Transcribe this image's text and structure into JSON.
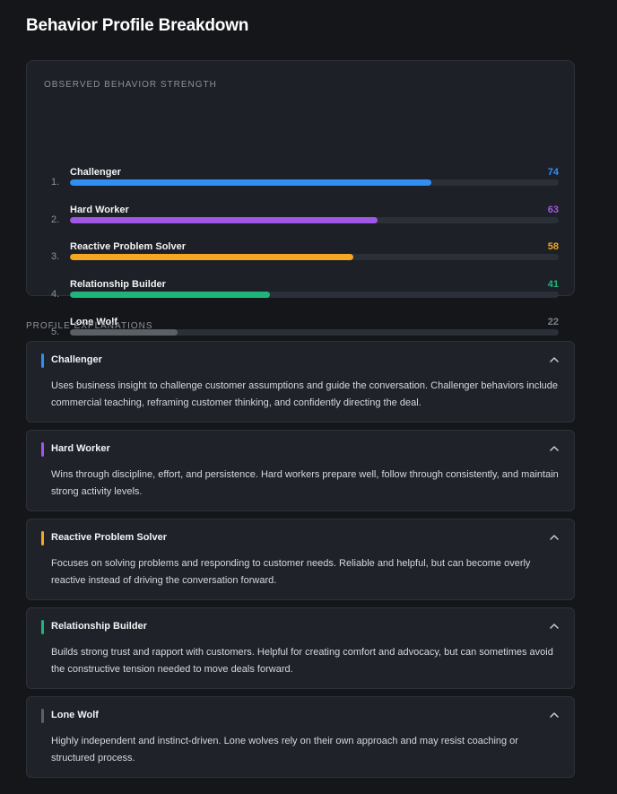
{
  "title": "Behavior Profile Breakdown",
  "strength": {
    "heading": "OBSERVED BEHAVIOR STRENGTH",
    "items": [
      {
        "rank": "1.",
        "label": "Challenger",
        "value": 74,
        "value_text": "74",
        "color": "#2f8ff5"
      },
      {
        "rank": "2.",
        "label": "Hard Worker",
        "value": 63,
        "value_text": "63",
        "color": "#a057e6"
      },
      {
        "rank": "3.",
        "label": "Reactive Problem Solver",
        "value": 58,
        "value_text": "58",
        "color": "#f5a623"
      },
      {
        "rank": "4.",
        "label": "Relationship Builder",
        "value": 41,
        "value_text": "41",
        "color": "#1fb57a"
      },
      {
        "rank": "5.",
        "label": "Lone Wolf",
        "value": 22,
        "value_text": "22",
        "color": "#5b5f66",
        "value_color": "#7d838c"
      }
    ]
  },
  "explanations": {
    "heading": "PROFILE EXPLANATIONS",
    "items": [
      {
        "title": "Challenger",
        "color": "#2f8ff5",
        "text": "Uses business insight to challenge customer assumptions and guide the conversation. Challenger behaviors include commercial teaching, reframing customer thinking, and confidently directing the deal.",
        "expanded": true
      },
      {
        "title": "Hard Worker",
        "color": "#a057e6",
        "text": "Wins through discipline, effort, and persistence. Hard workers prepare well, follow through consistently, and maintain strong activity levels.",
        "expanded": true
      },
      {
        "title": "Reactive Problem Solver",
        "color": "#f5a623",
        "text": "Focuses on solving problems and responding to customer needs. Reliable and helpful, but can become overly reactive instead of driving the conversation forward.",
        "expanded": true
      },
      {
        "title": "Relationship Builder",
        "color": "#1fb57a",
        "text": "Builds strong trust and rapport with customers. Helpful for creating comfort and advocacy, but can sometimes avoid the constructive tension needed to move deals forward.",
        "expanded": true
      },
      {
        "title": "Lone Wolf",
        "color": "#5b5f66",
        "text": "Highly independent and instinct-driven. Lone wolves rely on their own approach and may resist coaching or structured process.",
        "expanded": true
      }
    ]
  }
}
